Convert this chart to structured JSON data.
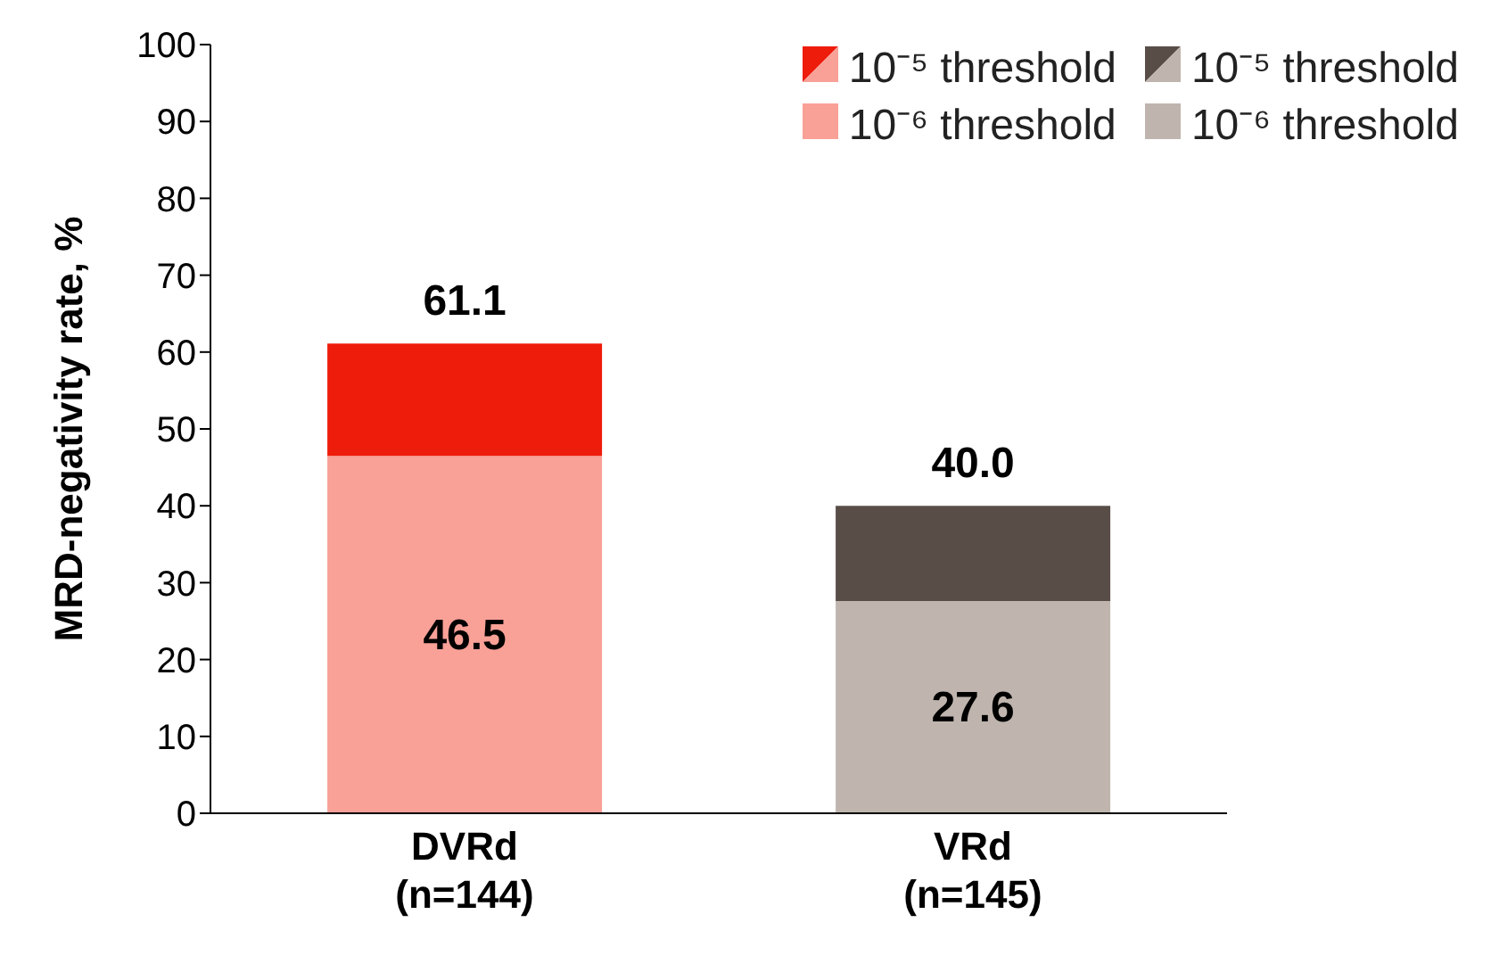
{
  "chart_data": {
    "type": "bar",
    "stacked": true,
    "ylabel": "MRD-negativity rate, %",
    "categories": [
      "DVRd (n=144)",
      "VRd (n=145)"
    ],
    "series": [
      {
        "name": "10⁻⁶ threshold",
        "color": "#f9a097",
        "values": [
          46.5,
          null
        ],
        "value_labels": [
          "46.5",
          null
        ]
      },
      {
        "name": "10⁻⁵ threshold",
        "color": "#ee1c0a",
        "values": [
          14.6,
          null
        ]
      },
      {
        "name": "10⁻⁶ threshold",
        "color": "#bfb5ae",
        "values": [
          null,
          27.6
        ],
        "value_labels": [
          null,
          "27.6"
        ]
      },
      {
        "name": "10⁻⁵ threshold",
        "color": "#594d47",
        "values": [
          null,
          12.4
        ]
      }
    ],
    "totals": [
      "61.1",
      "40.0"
    ],
    "ylim": [
      0,
      100
    ],
    "yticks": [
      0,
      10,
      20,
      30,
      40,
      50,
      60,
      70,
      80,
      90,
      100
    ],
    "legend": "top right"
  }
}
